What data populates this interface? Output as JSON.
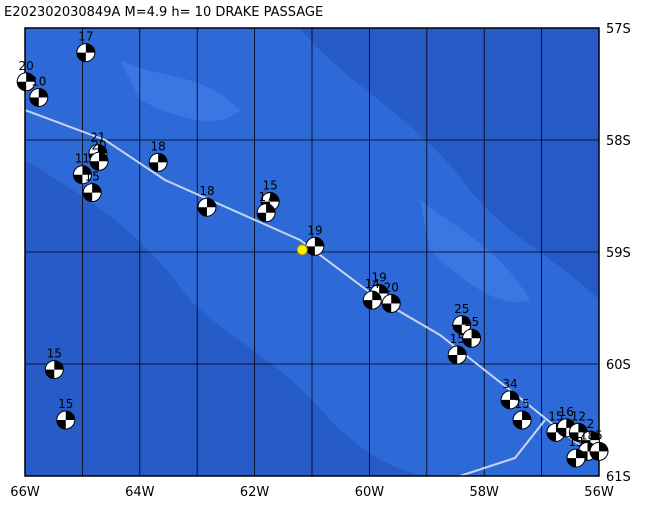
{
  "map": {
    "title": "E202302030849A  M=4.9  h= 10  DRAKE PASSAGE",
    "xlim": [
      -66,
      -56
    ],
    "ylim": [
      -61,
      -57
    ],
    "xticks": [
      {
        "value": -66,
        "label": "66W"
      },
      {
        "value": -64,
        "label": "64W"
      },
      {
        "value": -62,
        "label": "62W"
      },
      {
        "value": -60,
        "label": "60W"
      },
      {
        "value": -58,
        "label": "58W"
      },
      {
        "value": -56,
        "label": "56W"
      }
    ],
    "yticks": [
      {
        "value": -57,
        "label": "57S"
      },
      {
        "value": -58,
        "label": "58S"
      },
      {
        "value": -59,
        "label": "59S"
      },
      {
        "value": -60,
        "label": "60S"
      },
      {
        "value": -61,
        "label": "61S"
      }
    ],
    "epicenter": {
      "lon": -61.17,
      "lat": -58.98,
      "color": "#ffee00"
    },
    "events": [
      {
        "lon": -64.94,
        "lat": -57.22,
        "label": "17"
      },
      {
        "lon": -65.98,
        "lat": -57.48,
        "label": "20"
      },
      {
        "lon": -65.76,
        "lat": -57.62,
        "label": "10"
      },
      {
        "lon": -64.73,
        "lat": -58.12,
        "label": "21"
      },
      {
        "lon": -64.71,
        "lat": -58.19,
        "label": "20"
      },
      {
        "lon": -65.0,
        "lat": -58.31,
        "label": "11"
      },
      {
        "lon": -64.83,
        "lat": -58.47,
        "label": "15"
      },
      {
        "lon": -63.68,
        "lat": -58.2,
        "label": "18"
      },
      {
        "lon": -62.83,
        "lat": -58.6,
        "label": "18"
      },
      {
        "lon": -61.73,
        "lat": -58.55,
        "label": "15"
      },
      {
        "lon": -61.8,
        "lat": -58.65,
        "label": "17"
      },
      {
        "lon": -60.95,
        "lat": -58.95,
        "label": "19"
      },
      {
        "lon": -59.83,
        "lat": -59.37,
        "label": "19"
      },
      {
        "lon": -59.95,
        "lat": -59.43,
        "label": "14"
      },
      {
        "lon": -59.62,
        "lat": -59.46,
        "label": "20"
      },
      {
        "lon": -58.39,
        "lat": -59.65,
        "label": "25"
      },
      {
        "lon": -58.22,
        "lat": -59.77,
        "label": "15"
      },
      {
        "lon": -58.47,
        "lat": -59.92,
        "label": "15"
      },
      {
        "lon": -65.49,
        "lat": -60.05,
        "label": "15"
      },
      {
        "lon": -65.29,
        "lat": -60.5,
        "label": "15"
      },
      {
        "lon": -57.55,
        "lat": -60.32,
        "label": "34"
      },
      {
        "lon": -57.34,
        "lat": -60.5,
        "label": "15"
      },
      {
        "lon": -56.75,
        "lat": -60.61,
        "label": "15"
      },
      {
        "lon": -56.57,
        "lat": -60.57,
        "label": "16"
      },
      {
        "lon": -56.36,
        "lat": -60.61,
        "label": "12"
      },
      {
        "lon": -56.15,
        "lat": -60.68,
        "label": "2"
      },
      {
        "lon": -56.2,
        "lat": -60.78,
        "label": "18"
      },
      {
        "lon": -56.4,
        "lat": -60.84,
        "label": "15"
      },
      {
        "lon": -56.0,
        "lat": -60.78,
        "label": "5"
      }
    ]
  }
}
